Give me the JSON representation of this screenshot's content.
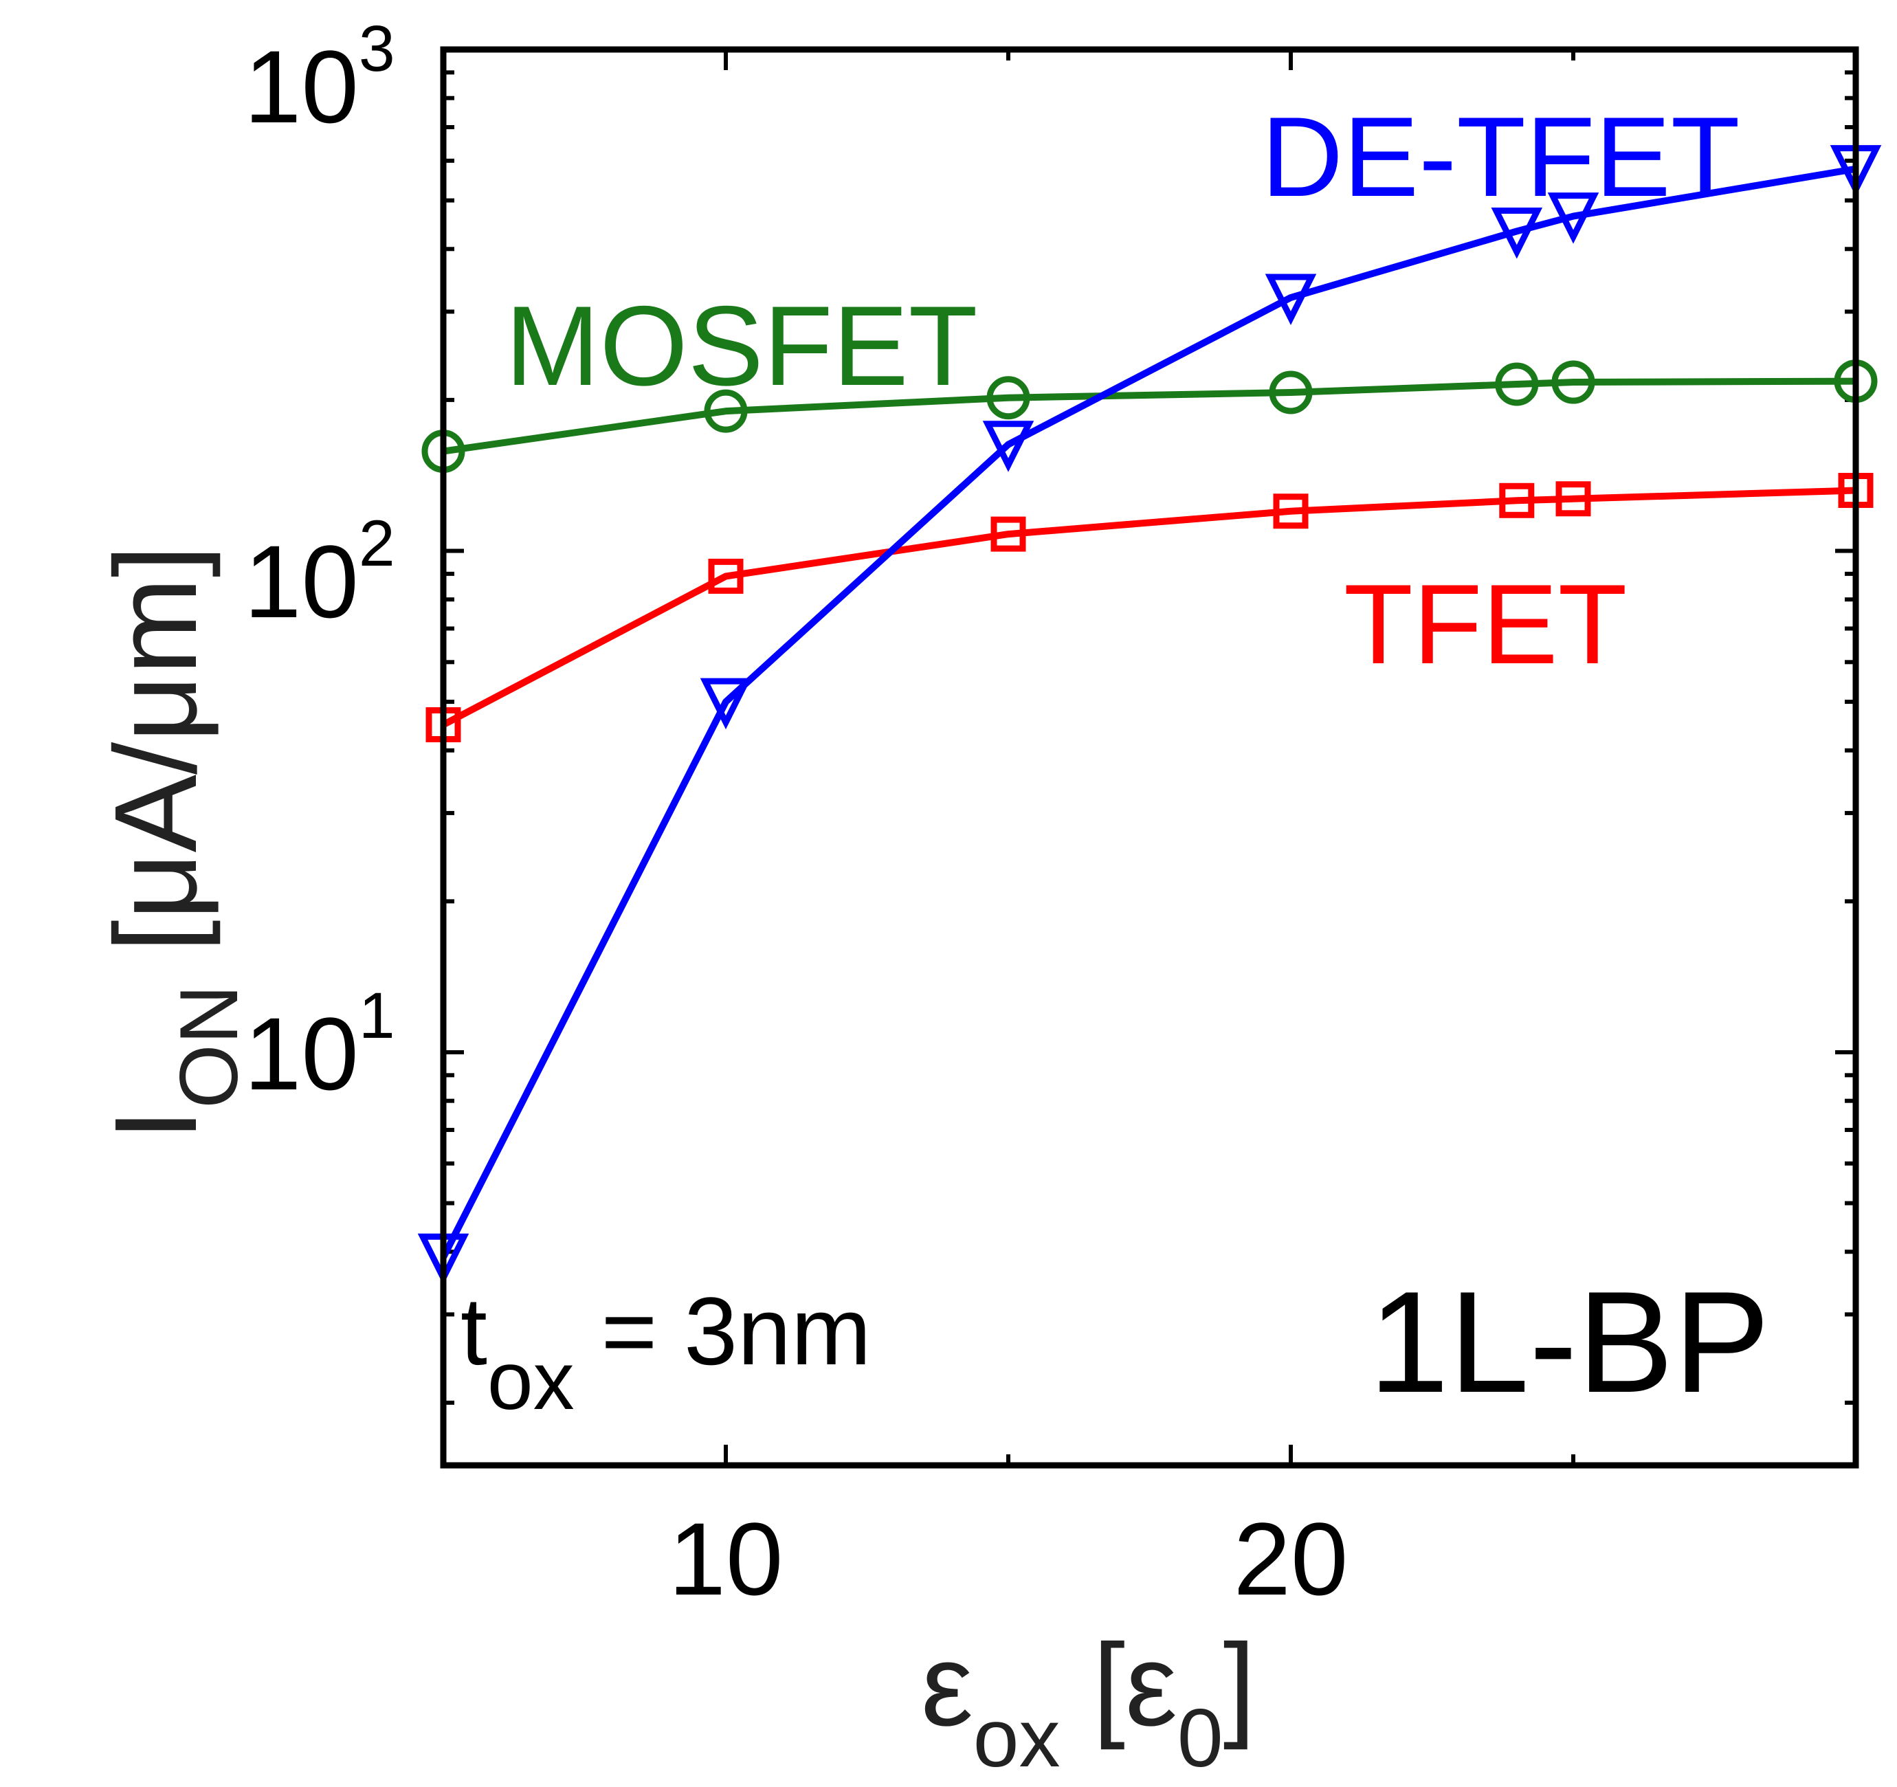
{
  "chart_data": {
    "type": "line",
    "title": "",
    "xscale": "linear",
    "yscale": "log",
    "xlim": [
      5,
      30
    ],
    "ylim": [
      1.5,
      1000
    ],
    "xticks": [
      10,
      20
    ],
    "xtick_labels": [
      "10",
      "20"
    ],
    "yticks": [
      10,
      100,
      1000
    ],
    "ytick_labels": [
      {
        "base": "10",
        "exp": "1"
      },
      {
        "base": "10",
        "exp": "2"
      },
      {
        "base": "10",
        "exp": "3"
      }
    ],
    "xlabel": {
      "main": "ε",
      "sub": "ox",
      "bracket_open": " [",
      "unit": "ε",
      "unit_sub": "0",
      "bracket_close": "]"
    },
    "ylabel": {
      "main": "I",
      "sub": "ON",
      "unit": " [μA/μm]"
    },
    "x": [
      5,
      10,
      15,
      20,
      24,
      25,
      30
    ],
    "series": [
      {
        "name": "MOSFET",
        "color": "#1a7a1a",
        "marker": "circle",
        "values": [
          158,
          190,
          202,
          207,
          215,
          217,
          218
        ]
      },
      {
        "name": "TFET",
        "color": "#ff0000",
        "marker": "square",
        "values": [
          45,
          89,
          108,
          120,
          126,
          127,
          132
        ]
      },
      {
        "name": "DE-TFET",
        "color": "#0000ff",
        "marker": "triangle-down",
        "values": [
          3.9,
          50,
          163,
          320,
          434,
          465,
          578
        ]
      }
    ],
    "annotations": {
      "thickness": {
        "main": "t",
        "sub": "ox",
        "rest": " = 3nm"
      },
      "material": "1L-BP"
    }
  }
}
